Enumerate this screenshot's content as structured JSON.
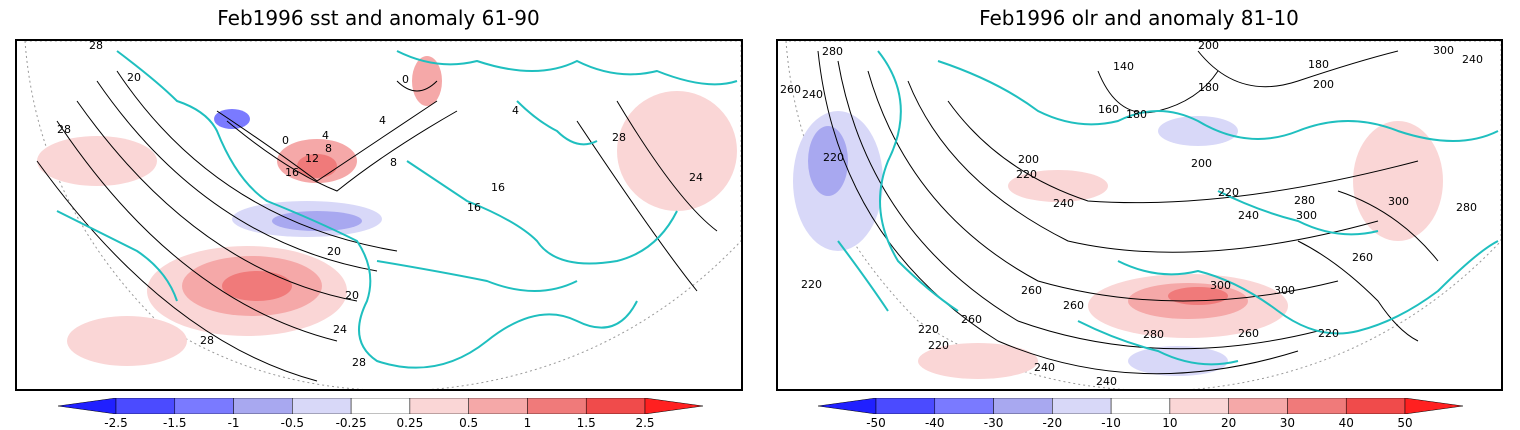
{
  "panels": [
    {
      "title": "Feb1996 sst and anomaly 61-90",
      "contour_labels": [
        "28",
        "20",
        "28",
        "0",
        "4",
        "8",
        "12",
        "16",
        "0",
        "4",
        "8",
        "4",
        "16",
        "20",
        "20",
        "24",
        "28",
        "28",
        "24",
        "28",
        "16"
      ],
      "colorbar": {
        "labels": [
          "-2.5",
          "-1.5",
          "-1",
          "-0.5",
          "-0.25",
          "0.25",
          "0.5",
          "1",
          "1.5",
          "2.5"
        ],
        "colors": [
          "#2020ff",
          "#4b4bff",
          "#7a7aff",
          "#a8a8f0",
          "#d8d8f8",
          "#ffffff",
          "#fad6d6",
          "#f5a8a8",
          "#f07a7a",
          "#f04b4b",
          "#ff2020"
        ]
      }
    },
    {
      "title": "Feb1996 olr and anomaly 81-10",
      "contour_labels": [
        "280",
        "260",
        "240",
        "220",
        "140",
        "160",
        "180",
        "180",
        "200",
        "200",
        "180",
        "300",
        "240",
        "200",
        "220",
        "200",
        "220",
        "240",
        "280",
        "300",
        "300",
        "280",
        "260",
        "240",
        "220",
        "220",
        "260",
        "260",
        "260",
        "300",
        "300",
        "280",
        "260",
        "220",
        "220",
        "240",
        "240"
      ],
      "colorbar": {
        "labels": [
          "-50",
          "-40",
          "-30",
          "-20",
          "-10",
          "10",
          "20",
          "30",
          "40",
          "50"
        ],
        "colors": [
          "#2020ff",
          "#4b4bff",
          "#7a7aff",
          "#a8a8f0",
          "#d8d8f8",
          "#ffffff",
          "#fad6d6",
          "#f5a8a8",
          "#f07a7a",
          "#f04b4b",
          "#ff2020"
        ]
      }
    }
  ],
  "colors": {
    "coast": "#1fbfbf",
    "contour": "#000000",
    "warm": "#f07a7a",
    "cool": "#7a7aff"
  }
}
